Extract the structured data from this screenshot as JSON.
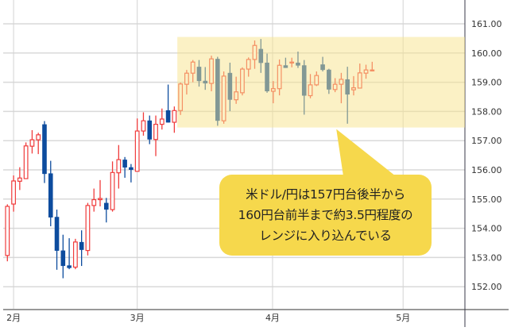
{
  "chart_data": {
    "type": "candlestick",
    "title": "",
    "xlabel": "",
    "ylabel": "",
    "ylim": [
      151.65,
      161.5
    ],
    "y_ticks": [
      "161.00",
      "160.00",
      "159.00",
      "158.00",
      "157.00",
      "156.00",
      "155.00",
      "154.00",
      "153.00",
      "152.00"
    ],
    "x_ticks": [
      {
        "label": "2月",
        "date": "02-01"
      },
      {
        "label": "3月",
        "date": "03-01"
      },
      {
        "label": "4月",
        "date": "04-01"
      },
      {
        "label": "5月",
        "date": "05-01"
      }
    ],
    "grid": true,
    "colors": {
      "up": "#f03c3c",
      "down": "#0d4c9e",
      "grid": "#d9d9d9",
      "highlight": "#f7e48c",
      "callout": "#f6d84c"
    },
    "highlight_range": {
      "from_date": "03-12",
      "y": [
        157.45,
        160.55
      ]
    },
    "annotation": {
      "lines": [
        "米ドル/円は157円台後半から",
        "160円台前半まで約3.5円程度の",
        "レンジに入り込んでいる"
      ],
      "points_to": {
        "date": "04-17",
        "y": 157.45
      }
    },
    "candles": [
      {
        "date": "01-31",
        "o": 153.07,
        "h": 154.82,
        "l": 152.87,
        "c": 154.75
      },
      {
        "date": "02-01",
        "o": 154.83,
        "h": 155.81,
        "l": 154.57,
        "c": 155.62
      },
      {
        "date": "02-02",
        "o": 155.61,
        "h": 156.09,
        "l": 155.31,
        "c": 155.72
      },
      {
        "date": "02-05",
        "o": 155.7,
        "h": 156.94,
        "l": 155.7,
        "c": 156.82
      },
      {
        "date": "02-06",
        "o": 156.81,
        "h": 157.36,
        "l": 156.56,
        "c": 157.03
      },
      {
        "date": "02-07",
        "o": 157.03,
        "h": 157.27,
        "l": 156.54,
        "c": 157.2
      },
      {
        "date": "02-08",
        "o": 157.56,
        "h": 157.67,
        "l": 155.55,
        "c": 155.86
      },
      {
        "date": "02-09",
        "o": 155.88,
        "h": 156.31,
        "l": 154.07,
        "c": 154.37
      },
      {
        "date": "02-13",
        "o": 154.39,
        "h": 154.64,
        "l": 152.58,
        "c": 153.23
      },
      {
        "date": "02-14",
        "o": 153.24,
        "h": 153.78,
        "l": 152.29,
        "c": 152.71
      },
      {
        "date": "02-15",
        "o": 152.73,
        "h": 153.66,
        "l": 152.6,
        "c": 152.64
      },
      {
        "date": "02-16",
        "o": 152.67,
        "h": 153.64,
        "l": 152.6,
        "c": 153.53
      },
      {
        "date": "02-19",
        "o": 153.53,
        "h": 153.93,
        "l": 152.71,
        "c": 153.26
      },
      {
        "date": "02-20",
        "o": 153.24,
        "h": 154.87,
        "l": 153.07,
        "c": 154.78
      },
      {
        "date": "02-21",
        "o": 154.78,
        "h": 155.36,
        "l": 154.57,
        "c": 154.98
      },
      {
        "date": "02-22",
        "o": 154.98,
        "h": 155.65,
        "l": 154.75,
        "c": 155.02
      },
      {
        "date": "02-23",
        "o": 154.87,
        "h": 155.04,
        "l": 154.2,
        "c": 154.64
      },
      {
        "date": "02-26",
        "o": 154.64,
        "h": 156.29,
        "l": 154.57,
        "c": 155.91
      },
      {
        "date": "02-27",
        "o": 155.9,
        "h": 156.85,
        "l": 155.36,
        "c": 156.35
      },
      {
        "date": "02-28",
        "o": 156.35,
        "h": 156.44,
        "l": 155.73,
        "c": 156.08
      },
      {
        "date": "02-29",
        "o": 156.09,
        "h": 156.2,
        "l": 155.57,
        "c": 156.0
      },
      {
        "date": "03-01",
        "o": 155.95,
        "h": 157.76,
        "l": 155.95,
        "c": 157.33
      },
      {
        "date": "03-04",
        "o": 157.33,
        "h": 157.97,
        "l": 157.17,
        "c": 157.68
      },
      {
        "date": "03-05",
        "o": 157.69,
        "h": 157.86,
        "l": 156.88,
        "c": 157.04
      },
      {
        "date": "03-06",
        "o": 157.04,
        "h": 157.86,
        "l": 156.47,
        "c": 157.56
      },
      {
        "date": "03-07",
        "o": 157.56,
        "h": 158.1,
        "l": 157.38,
        "c": 157.74
      },
      {
        "date": "03-08",
        "o": 158.04,
        "h": 158.92,
        "l": 157.62,
        "c": 157.62
      },
      {
        "date": "03-11",
        "o": 157.63,
        "h": 158.17,
        "l": 157.27,
        "c": 158.03
      },
      {
        "date": "03-12",
        "o": 158.03,
        "h": 158.99,
        "l": 157.88,
        "c": 158.94
      },
      {
        "date": "03-13",
        "o": 158.93,
        "h": 159.42,
        "l": 158.58,
        "c": 159.31
      },
      {
        "date": "03-14",
        "o": 159.31,
        "h": 159.76,
        "l": 159.0,
        "c": 159.69
      },
      {
        "date": "03-15",
        "o": 159.53,
        "h": 159.76,
        "l": 158.85,
        "c": 159.04
      },
      {
        "date": "03-18",
        "o": 159.05,
        "h": 159.52,
        "l": 158.74,
        "c": 158.96
      },
      {
        "date": "03-19",
        "o": 158.96,
        "h": 159.91,
        "l": 158.69,
        "c": 159.8
      },
      {
        "date": "03-20",
        "o": 159.8,
        "h": 159.87,
        "l": 157.51,
        "c": 157.68
      },
      {
        "date": "03-21",
        "o": 157.68,
        "h": 159.37,
        "l": 157.58,
        "c": 159.21
      },
      {
        "date": "03-22",
        "o": 159.32,
        "h": 159.67,
        "l": 158.01,
        "c": 158.4
      },
      {
        "date": "03-25",
        "o": 158.4,
        "h": 159.19,
        "l": 158.26,
        "c": 158.67
      },
      {
        "date": "03-26",
        "o": 158.64,
        "h": 159.51,
        "l": 158.55,
        "c": 159.45
      },
      {
        "date": "03-27",
        "o": 159.45,
        "h": 159.85,
        "l": 159.19,
        "c": 159.78
      },
      {
        "date": "03-28",
        "o": 159.78,
        "h": 160.43,
        "l": 159.46,
        "c": 160.26
      },
      {
        "date": "03-29",
        "o": 160.14,
        "h": 160.48,
        "l": 159.32,
        "c": 159.66
      },
      {
        "date": "03-31",
        "o": 159.67,
        "h": 159.98,
        "l": 158.64,
        "c": 158.69
      },
      {
        "date": "04-01",
        "o": 158.69,
        "h": 159.04,
        "l": 158.28,
        "c": 158.78
      },
      {
        "date": "04-02",
        "o": 158.78,
        "h": 159.78,
        "l": 158.55,
        "c": 159.58
      },
      {
        "date": "04-03",
        "o": 159.58,
        "h": 159.84,
        "l": 159.49,
        "c": 159.49
      },
      {
        "date": "04-04",
        "o": 159.69,
        "h": 159.84,
        "l": 159.51,
        "c": 159.69
      },
      {
        "date": "04-05",
        "o": 159.67,
        "h": 160.05,
        "l": 159.49,
        "c": 159.57
      },
      {
        "date": "04-08",
        "o": 159.58,
        "h": 159.76,
        "l": 157.89,
        "c": 158.54
      },
      {
        "date": "04-09",
        "o": 158.54,
        "h": 159.28,
        "l": 158.45,
        "c": 158.91
      },
      {
        "date": "04-10",
        "o": 158.91,
        "h": 159.37,
        "l": 158.87,
        "c": 159.23
      },
      {
        "date": "04-11",
        "o": 159.61,
        "h": 159.87,
        "l": 159.37,
        "c": 159.42
      },
      {
        "date": "04-12",
        "o": 159.43,
        "h": 159.46,
        "l": 158.6,
        "c": 158.75
      },
      {
        "date": "04-15",
        "o": 158.75,
        "h": 159.14,
        "l": 158.66,
        "c": 158.93
      },
      {
        "date": "04-16",
        "o": 158.93,
        "h": 159.32,
        "l": 158.28,
        "c": 159.1
      },
      {
        "date": "04-17",
        "o": 159.1,
        "h": 159.53,
        "l": 157.58,
        "c": 158.58
      },
      {
        "date": "04-18",
        "o": 158.74,
        "h": 159.21,
        "l": 158.55,
        "c": 158.81
      },
      {
        "date": "04-19",
        "o": 158.8,
        "h": 159.64,
        "l": 158.8,
        "c": 159.32
      },
      {
        "date": "04-22",
        "o": 159.31,
        "h": 159.6,
        "l": 159.12,
        "c": 159.42
      },
      {
        "date": "04-23",
        "o": 159.42,
        "h": 159.7,
        "l": 159.37,
        "c": 159.42
      }
    ]
  }
}
